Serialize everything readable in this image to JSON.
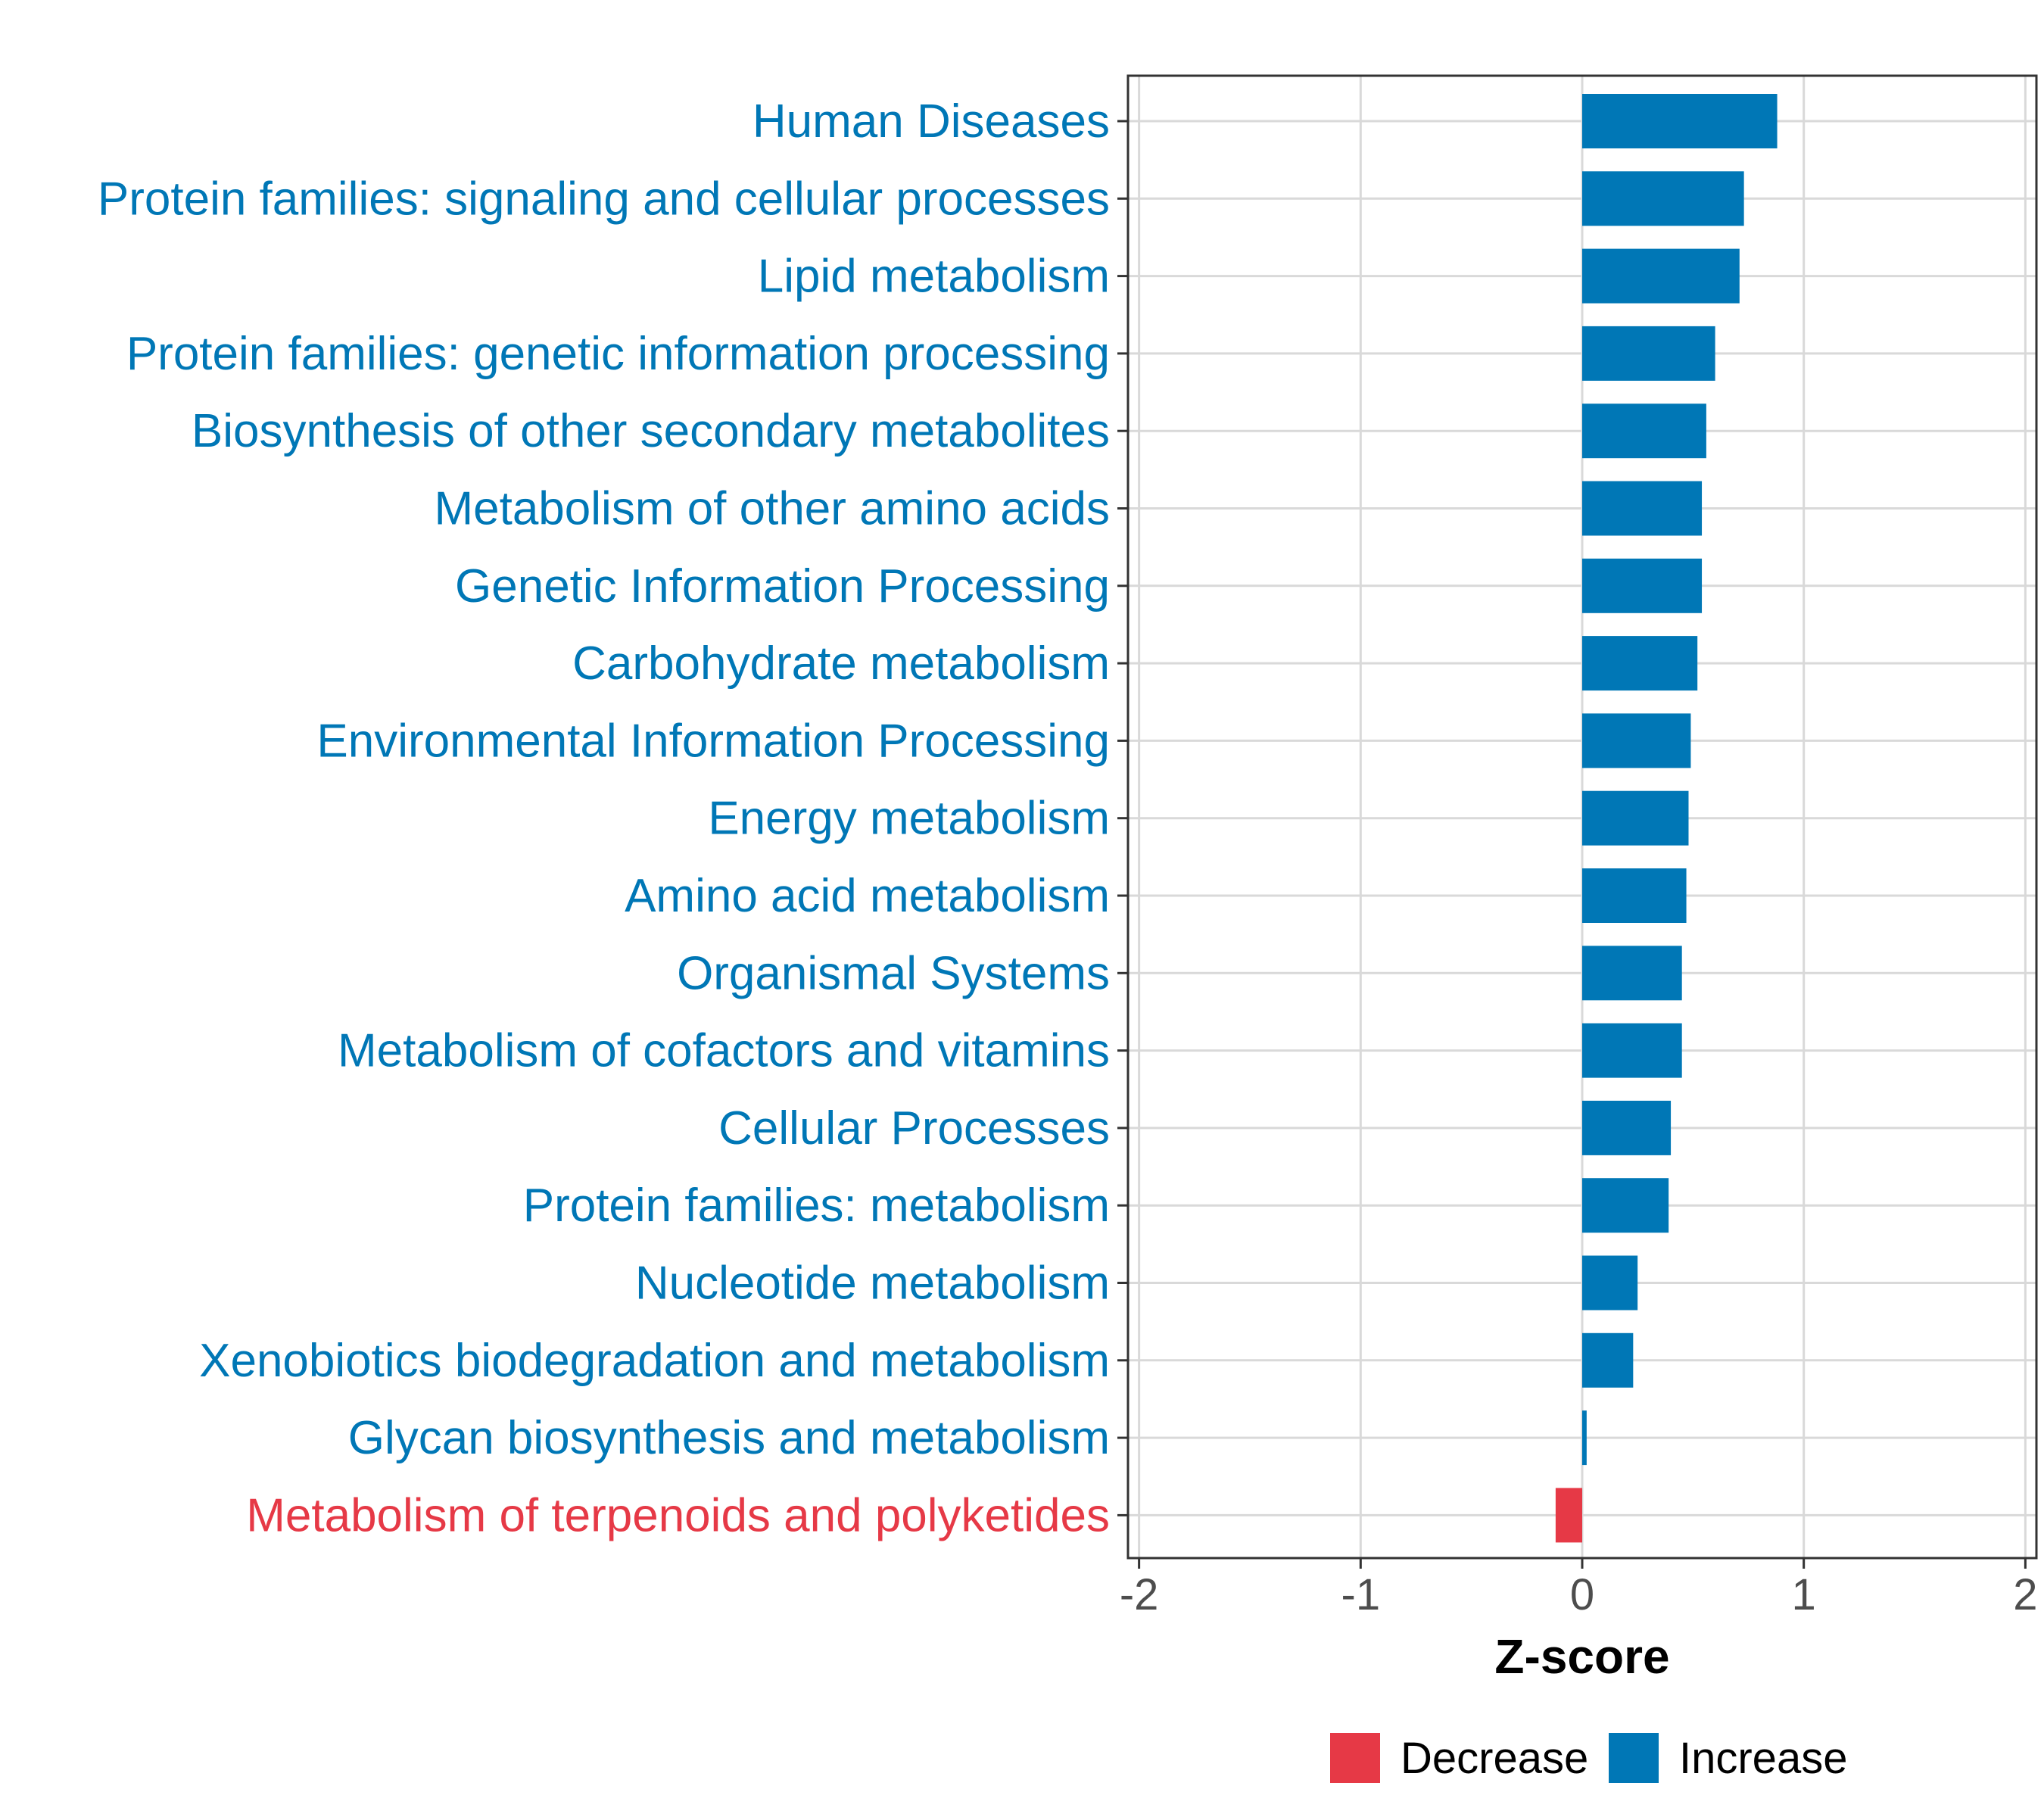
{
  "chart_data": {
    "type": "bar",
    "orientation": "horizontal",
    "title": "",
    "xlabel": "Z-score",
    "ylabel": "",
    "xlim": [
      -2.05,
      2.05
    ],
    "xticks": [
      -2,
      -1,
      0,
      1,
      2
    ],
    "xtick_labels": [
      "-2",
      "-1",
      "0",
      "1",
      "2"
    ],
    "grid": true,
    "legend_position": "bottom",
    "categories": [
      "Human Diseases",
      "Protein families: signaling and cellular processes",
      "Lipid metabolism",
      "Protein families: genetic information processing",
      "Biosynthesis of other secondary metabolites",
      "Metabolism of other amino acids",
      "Genetic Information Processing",
      "Carbohydrate metabolism",
      "Environmental Information Processing",
      "Energy metabolism",
      "Amino acid metabolism",
      "Organismal Systems",
      "Metabolism of cofactors and vitamins",
      "Cellular Processes",
      "Protein families: metabolism",
      "Nucleotide metabolism",
      "Xenobiotics biodegradation and metabolism",
      "Glycan biosynthesis and metabolism",
      "Metabolism of terpenoids and polyketides"
    ],
    "values": [
      0.88,
      0.73,
      0.71,
      0.6,
      0.56,
      0.54,
      0.54,
      0.52,
      0.49,
      0.48,
      0.47,
      0.45,
      0.45,
      0.4,
      0.39,
      0.25,
      0.23,
      0.02,
      -0.12
    ],
    "groups": [
      "Increase",
      "Increase",
      "Increase",
      "Increase",
      "Increase",
      "Increase",
      "Increase",
      "Increase",
      "Increase",
      "Increase",
      "Increase",
      "Increase",
      "Increase",
      "Increase",
      "Increase",
      "Increase",
      "Increase",
      "Increase",
      "Decrease"
    ],
    "legend": [
      {
        "name": "Decrease",
        "color": "#E63946"
      },
      {
        "name": "Increase",
        "color": "#0077B6"
      }
    ],
    "colors": {
      "Decrease": "#E63946",
      "Increase": "#0077B6",
      "grid": "#d9d9d9",
      "panel_border": "#333333"
    }
  }
}
